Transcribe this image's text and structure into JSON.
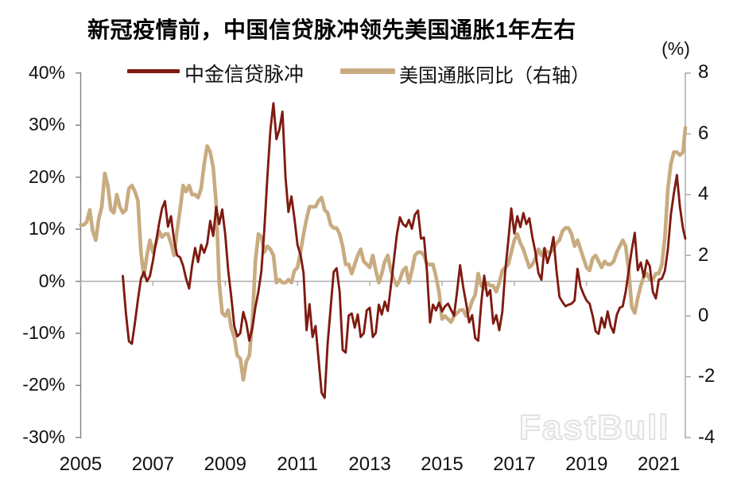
{
  "watermark": {
    "text": "FastBull"
  },
  "chart_data": {
    "type": "line",
    "title": "新冠疫情前，中国信贷脉冲领先美国通胀1年左右",
    "legend_position": "top",
    "grid": "zero-baseline-only",
    "x_axis": {
      "tick_labels": [
        "2005",
        "2007",
        "2009",
        "2011",
        "2013",
        "2015",
        "2017",
        "2019",
        "2021"
      ],
      "tick_years": [
        2005,
        2007,
        2009,
        2011,
        2013,
        2015,
        2017,
        2019,
        2021
      ],
      "range": [
        "2005-01",
        "2021-10"
      ]
    },
    "left_axis": {
      "min": -30,
      "max": 40,
      "unit": "%",
      "ticks": [
        {
          "label": "40%",
          "value": 40
        },
        {
          "label": "30%",
          "value": 30
        },
        {
          "label": "20%",
          "value": 20
        },
        {
          "label": "10%",
          "value": 10
        },
        {
          "label": "0%",
          "value": 0
        },
        {
          "label": "-10%",
          "value": -10
        },
        {
          "label": "-20%",
          "value": -20
        },
        {
          "label": "-30%",
          "value": -30
        }
      ]
    },
    "right_axis": {
      "min": -4,
      "max": 8,
      "unit_label": "(%)",
      "ticks": [
        {
          "label": "8",
          "value": 8
        },
        {
          "label": "6",
          "value": 6
        },
        {
          "label": "4",
          "value": 4
        },
        {
          "label": "2",
          "value": 2
        },
        {
          "label": "0",
          "value": 0
        },
        {
          "label": "-2",
          "value": -2
        },
        {
          "label": "-4",
          "value": -4
        }
      ]
    },
    "series": [
      {
        "name": "美国通胀同比（右轴）",
        "axis": "right",
        "color": "#C8AB80",
        "line_width": 4.6,
        "frequency": "monthly",
        "start_year": 2005,
        "start_month": 1,
        "values": [
          3.0,
          3.0,
          3.1,
          3.5,
          2.8,
          2.5,
          3.2,
          3.6,
          4.7,
          4.3,
          3.5,
          3.4,
          4.0,
          3.6,
          3.4,
          3.5,
          4.2,
          4.3,
          4.1,
          3.8,
          2.1,
          1.3,
          2.0,
          2.5,
          2.1,
          2.4,
          2.8,
          2.6,
          2.7,
          2.7,
          2.4,
          2.0,
          2.8,
          3.5,
          4.3,
          4.1,
          4.3,
          4.0,
          4.0,
          3.9,
          4.2,
          5.0,
          5.6,
          5.4,
          4.9,
          3.7,
          1.1,
          0.1,
          0.0,
          0.2,
          -0.4,
          -0.7,
          -1.3,
          -1.4,
          -2.1,
          -1.5,
          -1.3,
          -0.2,
          1.8,
          2.7,
          2.6,
          2.1,
          2.3,
          2.2,
          2.0,
          1.1,
          1.2,
          1.1,
          1.1,
          1.2,
          1.1,
          1.5,
          1.6,
          2.1,
          2.7,
          3.2,
          3.6,
          3.6,
          3.6,
          3.8,
          3.9,
          3.5,
          3.4,
          3.0,
          2.9,
          2.9,
          2.7,
          2.3,
          1.7,
          1.7,
          1.4,
          1.7,
          2.0,
          2.2,
          1.8,
          1.7,
          1.6,
          2.0,
          1.5,
          1.1,
          1.4,
          1.8,
          2.0,
          1.5,
          1.2,
          1.0,
          1.2,
          1.5,
          1.6,
          1.1,
          1.5,
          2.0,
          2.1,
          2.1,
          2.0,
          1.7,
          1.7,
          1.7,
          1.3,
          0.8,
          -0.1,
          0.0,
          -0.1,
          -0.2,
          0.0,
          0.1,
          0.2,
          0.2,
          0.0,
          0.2,
          0.5,
          0.7,
          1.4,
          1.0,
          0.9,
          1.1,
          1.0,
          1.0,
          0.8,
          1.1,
          1.5,
          1.6,
          1.7,
          2.1,
          2.5,
          2.7,
          2.4,
          2.2,
          1.9,
          1.6,
          1.7,
          1.9,
          2.2,
          2.0,
          2.2,
          2.1,
          2.1,
          2.2,
          2.4,
          2.5,
          2.8,
          2.9,
          2.9,
          2.7,
          2.3,
          2.5,
          2.2,
          1.9,
          1.6,
          1.5,
          1.9,
          2.0,
          1.8,
          1.6,
          1.8,
          1.7,
          1.7,
          1.8,
          2.1,
          2.3,
          2.5,
          2.3,
          1.5,
          0.3,
          0.1,
          0.6,
          1.0,
          1.3,
          1.4,
          1.2,
          1.2,
          1.4,
          1.4,
          1.7,
          2.6,
          4.2,
          5.0,
          5.4,
          5.4,
          5.3,
          5.4,
          6.2
        ]
      },
      {
        "name": "中金信贷脉冲",
        "axis": "left",
        "color": "#7E1B12",
        "line_width": 2.9,
        "frequency": "monthly",
        "start_year": 2006,
        "start_month": 3,
        "values": [
          1.0,
          -6.0,
          -11.5,
          -12.0,
          -8.0,
          -3.5,
          0.5,
          1.8,
          0.0,
          1.0,
          4.0,
          7.5,
          11.0,
          14.0,
          15.4,
          10.5,
          12.5,
          8.0,
          5.0,
          4.6,
          3.0,
          0.5,
          -1.4,
          3.0,
          6.4,
          3.7,
          7.0,
          5.5,
          7.2,
          11.6,
          8.7,
          14.3,
          11.0,
          13.8,
          9.0,
          2.0,
          -3.0,
          -8.6,
          -10.6,
          -10.0,
          -5.9,
          -8.0,
          -11.4,
          -9.0,
          -5.0,
          -2.0,
          2.0,
          10.0,
          20.0,
          29.0,
          34.2,
          27.3,
          29.2,
          32.6,
          20.0,
          13.3,
          16.3,
          12.0,
          7.0,
          5.1,
          1.6,
          -9.4,
          -4.4,
          -10.7,
          -8.6,
          -15.0,
          -21.4,
          -22.4,
          -12.0,
          -5.1,
          1.8,
          2.5,
          -2.0,
          -13.2,
          -13.7,
          -6.6,
          -6.2,
          -8.9,
          -6.4,
          -10.7,
          -10.0,
          -5.6,
          -5.1,
          -10.7,
          -9.9,
          -4.5,
          -6.4,
          -3.9,
          -5.7,
          -1.0,
          4.0,
          9.0,
          12.3,
          11.0,
          10.5,
          11.8,
          10.1,
          12.8,
          13.6,
          8.2,
          8.4,
          1.8,
          -7.9,
          -4.5,
          -5.6,
          -4.1,
          -5.8,
          -4.8,
          -4.3,
          -5.5,
          -6.6,
          -2.0,
          3.1,
          -1.0,
          -4.2,
          -7.9,
          -6.5,
          -10.9,
          -11.4,
          -4.4,
          1.1,
          -2.8,
          -1.7,
          -8.1,
          -6.5,
          -9.4,
          -5.9,
          2.0,
          7.7,
          14.0,
          9.2,
          12.5,
          10.4,
          13.1,
          11.0,
          12.1,
          8.5,
          5.6,
          1.6,
          0.3,
          6.4,
          3.5,
          5.5,
          8.5,
          2.1,
          -3.0,
          -4.0,
          -4.8,
          -4.5,
          -4.3,
          -3.7,
          2.4,
          -1.0,
          -2.5,
          -3.7,
          -4.3,
          -6.6,
          -9.6,
          -10.1,
          -7.0,
          -8.9,
          -5.8,
          -8.6,
          -9.9,
          -6.5,
          -5.1,
          -4.8,
          -2.0,
          2.0,
          6.0,
          9.3,
          2.1,
          3.6,
          0.8,
          4.0,
          2.9,
          -2.0,
          -3.3,
          0.3,
          0.5,
          2.0,
          6.2,
          12.8,
          16.9,
          20.4,
          14.3,
          10.2,
          8.2
        ]
      }
    ]
  }
}
